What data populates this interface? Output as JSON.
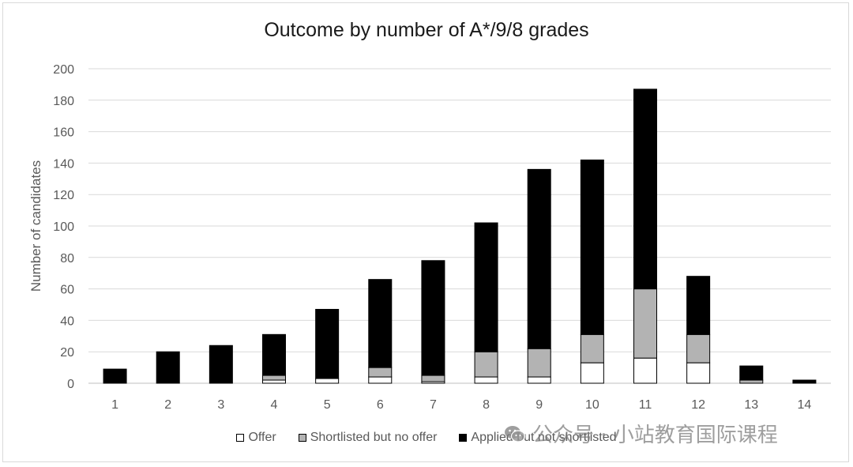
{
  "colors": {
    "offer": "#ffffff",
    "shortlisted": "#b3b3b3",
    "applied": "#000000",
    "grid": "#d9d9d9",
    "axis_text": "#595959"
  },
  "watermark": {
    "text": "公众号 · 小站教育国际课程",
    "icon": "wechat-icon"
  },
  "chart_data": {
    "type": "bar",
    "stacked": true,
    "title": "Outcome by number of A*/9/8 grades",
    "xlabel": "",
    "ylabel": "Number of candidates",
    "categories": [
      "1",
      "2",
      "3",
      "4",
      "5",
      "6",
      "7",
      "8",
      "9",
      "10",
      "11",
      "12",
      "13",
      "14"
    ],
    "ylim": [
      0,
      200
    ],
    "yticks": [
      0,
      20,
      40,
      60,
      80,
      100,
      120,
      140,
      160,
      180,
      200
    ],
    "grid": true,
    "legend_position": "bottom",
    "series": [
      {
        "name": "Offer",
        "values": [
          0,
          0,
          0,
          2,
          3,
          4,
          1,
          4,
          4,
          13,
          16,
          13,
          0,
          0
        ]
      },
      {
        "name": "Shortlisted but no offer",
        "values": [
          0,
          0,
          0,
          3,
          0,
          6,
          4,
          16,
          18,
          18,
          44,
          18,
          2,
          0
        ]
      },
      {
        "name": "Applied but not shortlisted",
        "values": [
          9,
          20,
          24,
          26,
          44,
          56,
          73,
          82,
          114,
          111,
          127,
          37,
          9,
          2
        ]
      }
    ]
  }
}
